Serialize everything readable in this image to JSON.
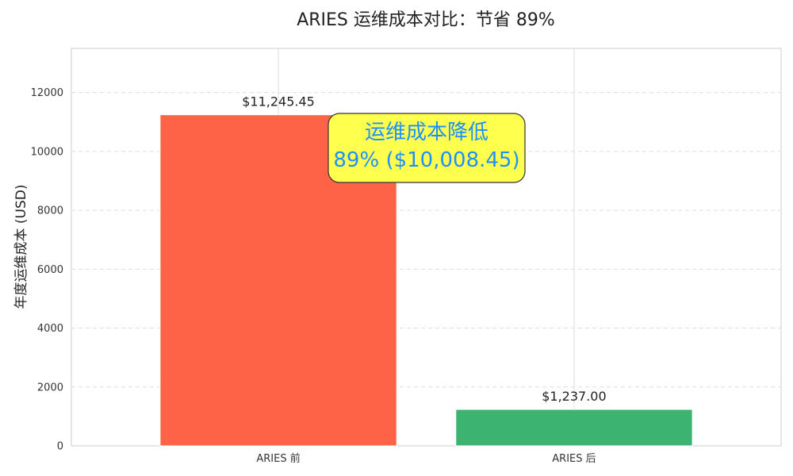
{
  "chart_data": {
    "type": "bar",
    "title": "ARIES 运维成本对比：节省 89%",
    "xlabel": "",
    "ylabel": "年度运维成本 (USD)",
    "categories": [
      "ARIES 前",
      "ARIES 后"
    ],
    "values": [
      11245.45,
      1237.0
    ],
    "data_labels": [
      "$11,245.45",
      "$1,237.00"
    ],
    "colors": [
      "#FF6347",
      "#3CB371"
    ],
    "ylim": [
      0,
      13500
    ],
    "yticks": [
      0,
      2000,
      4000,
      6000,
      8000,
      10000,
      12000
    ],
    "ytick_labels": [
      "0",
      "2000",
      "4000",
      "6000",
      "8000",
      "10000",
      "12000"
    ],
    "grid": true,
    "annotation": {
      "line1": "运维成本降低",
      "line2": "89% ($10,008.45)",
      "text_color": "#1E90FF",
      "background": "#FFFF4D"
    }
  }
}
